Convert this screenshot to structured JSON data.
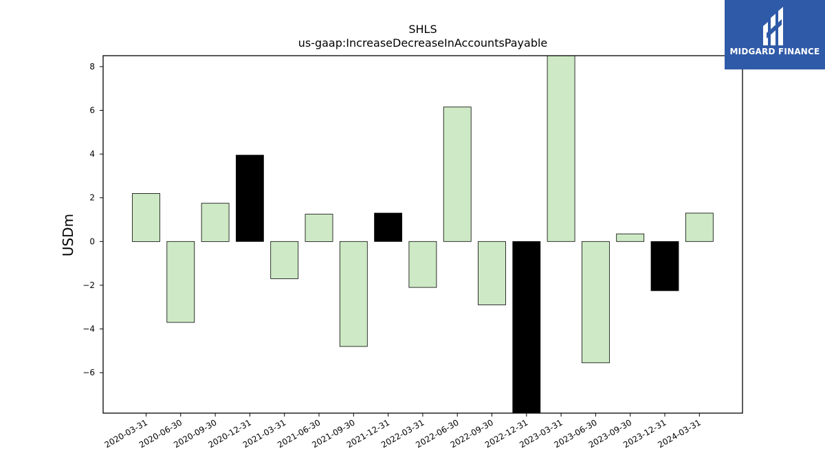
{
  "brand": {
    "name": "MIDGARD FINANCE",
    "accent": "#2f5aa8"
  },
  "chart_data": {
    "type": "bar",
    "title": "SHLS",
    "subtitle": "us-gaap:IncreaseDecreaseInAccountsPayable",
    "xlabel": "",
    "ylabel": "USDm",
    "ylim": [
      -7.85,
      8.5
    ],
    "yticks": [
      -6,
      -4,
      -2,
      0,
      2,
      4,
      6,
      8
    ],
    "categories": [
      "2020-03-31",
      "2020-06-30",
      "2020-09-30",
      "2020-12-31",
      "2021-03-31",
      "2021-06-30",
      "2021-09-30",
      "2021-12-31",
      "2022-03-31",
      "2022-06-30",
      "2022-09-30",
      "2022-12-31",
      "2023-03-31",
      "2023-06-30",
      "2023-09-30",
      "2023-12-31",
      "2024-03-31"
    ],
    "values": [
      2.2,
      -3.7,
      1.75,
      3.95,
      -1.7,
      1.25,
      -4.8,
      1.3,
      -2.1,
      6.15,
      -2.9,
      -7.85,
      8.5,
      -5.55,
      0.35,
      -2.25,
      1.3
    ],
    "highlight": [
      false,
      false,
      false,
      true,
      false,
      false,
      false,
      true,
      false,
      false,
      false,
      true,
      false,
      false,
      false,
      true,
      false
    ],
    "colors": {
      "normal": "#cde9c5",
      "highlight": "#000000",
      "edge": "#000000"
    },
    "grid": false,
    "legend": "none"
  }
}
